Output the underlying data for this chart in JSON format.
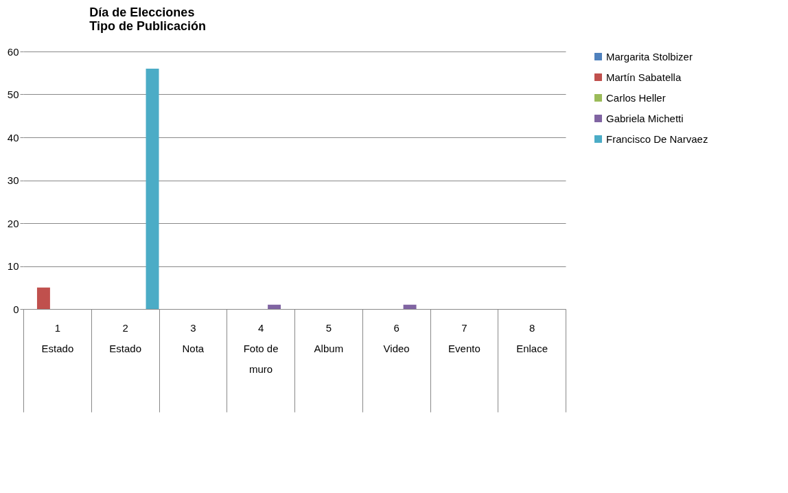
{
  "chart_data": {
    "type": "bar",
    "title": "Día de Elecciones\nTipo de Publicación",
    "categories": [
      "1\nEstado",
      "2\nEstado",
      "3\nNota",
      "4\nFoto de\nmuro",
      "5\nAlbum",
      "6\nVideo",
      "7\nEvento",
      "8\nEnlace"
    ],
    "series": [
      {
        "name": "Margarita Stolbizer",
        "color": "#4f81bd",
        "values": [
          0,
          0,
          0,
          0,
          0,
          0,
          0,
          0
        ]
      },
      {
        "name": "Martín Sabatella",
        "color": "#c0504d",
        "values": [
          5,
          0,
          0,
          0,
          0,
          0,
          0,
          0
        ]
      },
      {
        "name": "Carlos Heller",
        "color": "#9bbb59",
        "values": [
          0,
          0,
          0,
          0,
          0,
          0,
          0,
          0
        ]
      },
      {
        "name": "Gabriela Michetti",
        "color": "#8064a2",
        "values": [
          0,
          0,
          0,
          1,
          0,
          1,
          0,
          0
        ]
      },
      {
        "name": "Francisco De Narvaez",
        "color": "#4bacc6",
        "values": [
          0,
          56,
          0,
          0,
          0,
          0,
          0,
          0
        ]
      }
    ],
    "ylim": [
      0,
      60
    ],
    "yticks": [
      0,
      10,
      20,
      30,
      40,
      50,
      60
    ],
    "grid": "y",
    "legend": "right"
  }
}
